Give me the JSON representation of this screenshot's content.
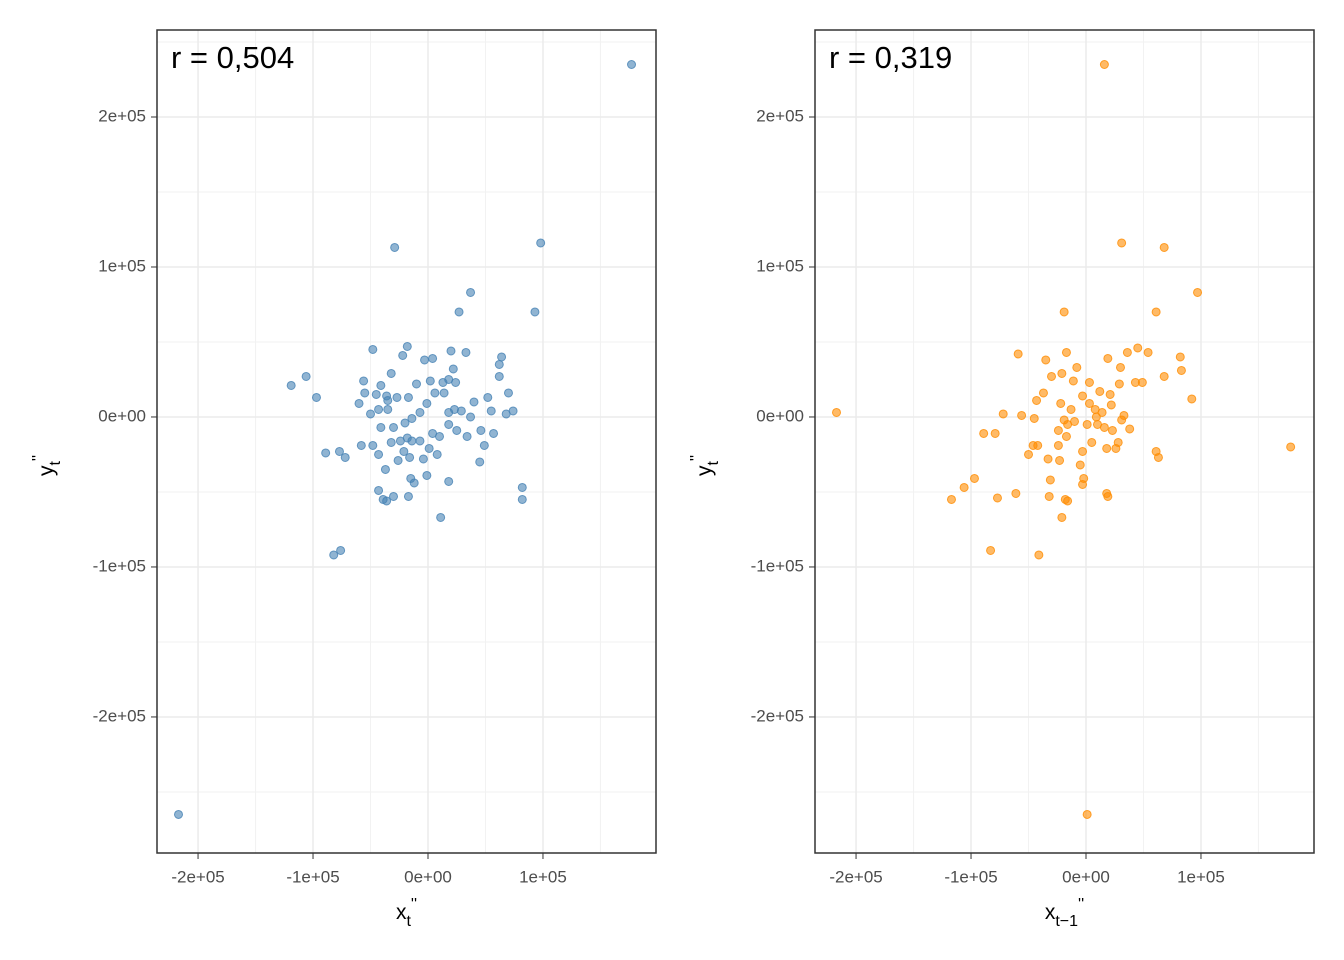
{
  "chart_data": [
    {
      "type": "scatter",
      "annotation": "r = 0,504",
      "color": "#4682b4",
      "xlabel": {
        "text": "x",
        "subscript": "t",
        "suffix": "''"
      },
      "ylabel": {
        "text": "y",
        "subscript": "t",
        "suffix": "''"
      },
      "xlim": [
        -235700,
        198300
      ],
      "ylim": [
        -290700,
        258000
      ],
      "xticks": [
        {
          "value": -200000,
          "label": "-2e+05"
        },
        {
          "value": -100000,
          "label": "-1e+05"
        },
        {
          "value": 0,
          "label": "0e+00"
        },
        {
          "value": 100000,
          "label": "1e+05"
        }
      ],
      "yticks": [
        {
          "value": -200000,
          "label": "-2e+05"
        },
        {
          "value": -100000,
          "label": "-1e+05"
        },
        {
          "value": 0,
          "label": "0e+00"
        },
        {
          "value": 100000,
          "label": "1e+05"
        },
        {
          "value": 200000,
          "label": "2e+05"
        }
      ],
      "xminor": [
        -150000,
        -50000,
        50000,
        150000
      ],
      "yminor": [
        -250000,
        -150000,
        -50000,
        50000,
        150000,
        250000
      ],
      "grid": true,
      "x": [
        -217000,
        177000,
        -29000,
        98000,
        37000,
        93000,
        27000,
        -119000,
        -106000,
        -97000,
        -89000,
        -77000,
        -72000,
        -82000,
        -76000,
        82000,
        82000,
        11000,
        18000,
        -48000,
        -18000,
        -22000,
        4000,
        -3000,
        20000,
        33000,
        64000,
        62000,
        62000,
        70000,
        74000,
        68000,
        55000,
        52000,
        40000,
        37000,
        23000,
        18000,
        29000,
        46000,
        57000,
        49000,
        45000,
        34000,
        25000,
        18000,
        10000,
        4000,
        8000,
        1000,
        -7000,
        -14000,
        -14000,
        -7000,
        -1000,
        6000,
        13000,
        18000,
        24000,
        22000,
        14000,
        2000,
        -10000,
        -17000,
        -27000,
        -36000,
        -41000,
        -56000,
        -55000,
        -60000,
        -45000,
        -43000,
        -35000,
        -50000,
        -41000,
        -30000,
        -20000,
        -18000,
        -24000,
        -32000,
        -48000,
        -58000,
        -43000,
        -37000,
        -26000,
        -21000,
        -16000,
        -12000,
        -15000,
        -17000,
        -30000,
        -36000,
        -43000,
        -39000,
        -4000,
        -1000,
        -32000,
        -35000
      ],
      "values": [
        -265000,
        235000,
        113000,
        116000,
        83000,
        70000,
        70000,
        21000,
        27000,
        13000,
        -24000,
        -23000,
        -27000,
        -92000,
        -89000,
        -47000,
        -55000,
        -67000,
        -43000,
        45000,
        47000,
        41000,
        39000,
        38000,
        44000,
        43000,
        40000,
        35000,
        27000,
        16000,
        4000,
        2000,
        4000,
        13000,
        10000,
        0,
        5000,
        3000,
        4000,
        -9000,
        -11000,
        -19000,
        -30000,
        -13000,
        -9000,
        -5000,
        -13000,
        -11000,
        -25000,
        -21000,
        -16000,
        -16000,
        -1000,
        3000,
        9000,
        16000,
        23000,
        25000,
        23000,
        32000,
        16000,
        24000,
        22000,
        13000,
        13000,
        14000,
        21000,
        24000,
        16000,
        9000,
        15000,
        5000,
        5000,
        2000,
        -7000,
        -7000,
        -4000,
        -14000,
        -16000,
        -17000,
        -19000,
        -19000,
        -25000,
        -35000,
        -29000,
        -23000,
        -27000,
        -44000,
        -41000,
        -53000,
        -53000,
        -56000,
        -49000,
        -55000,
        -28000,
        -39000,
        29000,
        11000
      ]
    },
    {
      "type": "scatter",
      "annotation": "r = 0,319",
      "color": "#ff8c00",
      "xlabel": {
        "text": "x",
        "subscript": "t−1",
        "suffix": "''"
      },
      "ylabel": {
        "text": "y",
        "subscript": "t",
        "suffix": "''"
      },
      "xlim": [
        -235700,
        198300
      ],
      "ylim": [
        -290700,
        258000
      ],
      "xticks": [
        {
          "value": -200000,
          "label": "-2e+05"
        },
        {
          "value": -100000,
          "label": "-1e+05"
        },
        {
          "value": 0,
          "label": "0e+00"
        },
        {
          "value": 100000,
          "label": "1e+05"
        }
      ],
      "yticks": [
        {
          "value": -200000,
          "label": "-2e+05"
        },
        {
          "value": -100000,
          "label": "-1e+05"
        },
        {
          "value": 0,
          "label": "0e+00"
        },
        {
          "value": 100000,
          "label": "1e+05"
        },
        {
          "value": 200000,
          "label": "2e+05"
        }
      ],
      "xminor": [
        -150000,
        -50000,
        50000,
        150000
      ],
      "yminor": [
        -250000,
        -150000,
        -50000,
        50000,
        150000,
        250000
      ],
      "grid": true,
      "x": [
        -217000,
        178000,
        16000,
        1000,
        31000,
        68000,
        97000,
        61000,
        -19000,
        -117000,
        -106000,
        -97000,
        -83000,
        -77000,
        -61000,
        -89000,
        -79000,
        -72000,
        -59000,
        -41000,
        -21000,
        -18000,
        -16000,
        -32000,
        -3000,
        -2000,
        18000,
        19000,
        -56000,
        -45000,
        -43000,
        -37000,
        -30000,
        -35000,
        -17000,
        -11000,
        -3000,
        3000,
        8000,
        14000,
        22000,
        29000,
        19000,
        30000,
        36000,
        45000,
        54000,
        43000,
        49000,
        68000,
        82000,
        83000,
        92000,
        61000,
        63000,
        38000,
        28000,
        18000,
        5000,
        -3000,
        -5000,
        -23000,
        -31000,
        -33000,
        -42000,
        -50000,
        -46000,
        -24000,
        -16000,
        -10000,
        -13000,
        -22000,
        -19000,
        -24000,
        10000,
        16000,
        23000,
        31000,
        21000,
        12000,
        3000,
        -8000,
        -21000,
        -17000,
        26000,
        33000,
        9000,
        1000
      ],
      "values": [
        3000,
        -20000,
        235000,
        -265000,
        116000,
        113000,
        83000,
        70000,
        70000,
        -55000,
        -47000,
        -41000,
        -89000,
        -54000,
        -51000,
        -11000,
        -11000,
        2000,
        42000,
        -92000,
        -67000,
        -55000,
        -56000,
        -53000,
        -45000,
        -41000,
        -51000,
        -53000,
        1000,
        -1000,
        11000,
        16000,
        27000,
        38000,
        43000,
        24000,
        14000,
        9000,
        5000,
        3000,
        8000,
        22000,
        39000,
        33000,
        43000,
        46000,
        43000,
        23000,
        23000,
        27000,
        40000,
        31000,
        12000,
        -23000,
        -27000,
        -8000,
        -17000,
        -21000,
        -17000,
        -23000,
        -32000,
        -29000,
        -42000,
        -28000,
        -19000,
        -25000,
        -19000,
        -9000,
        -5000,
        -3000,
        5000,
        9000,
        -2000,
        -19000,
        -5000,
        -7000,
        -9000,
        -2000,
        15000,
        17000,
        23000,
        33000,
        29000,
        -13000,
        -21000,
        1000,
        0,
        -5000
      ]
    }
  ]
}
